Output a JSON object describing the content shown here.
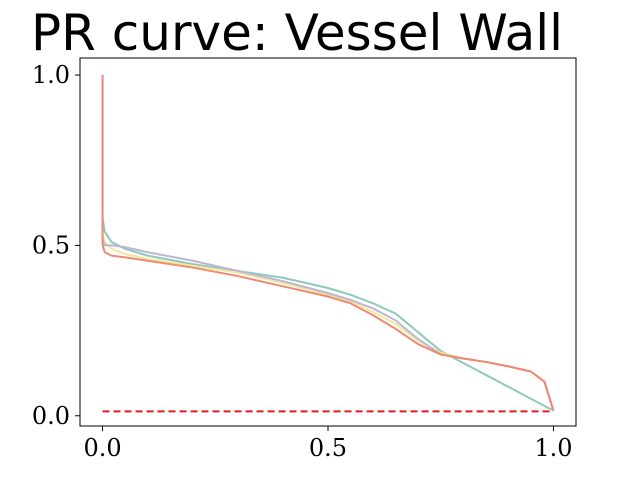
{
  "chart_data": {
    "type": "line",
    "title": "PR curve: Vessel Wall",
    "xlabel": "",
    "ylabel": "",
    "xlim": [
      -0.05,
      1.05
    ],
    "ylim": [
      -0.03,
      1.05
    ],
    "xticks": [
      0.0,
      0.5,
      1.0
    ],
    "xtick_labels": [
      "0.0",
      "0.5",
      "1.0"
    ],
    "yticks": [
      0.0,
      0.5,
      1.0
    ],
    "ytick_labels": [
      "0.0",
      "0.5",
      "1.0"
    ],
    "grid": false,
    "legend": "none",
    "series": [
      {
        "color": "#8ec9bb",
        "style": "solid",
        "x": [
          0.0,
          0.0,
          0.005,
          0.02,
          0.05,
          0.1,
          0.2,
          0.3,
          0.4,
          0.5,
          0.55,
          0.6,
          0.65,
          0.7,
          0.75,
          0.8,
          0.85,
          0.9,
          0.95,
          1.0
        ],
        "y": [
          1.0,
          0.58,
          0.54,
          0.51,
          0.49,
          0.47,
          0.445,
          0.425,
          0.405,
          0.375,
          0.355,
          0.33,
          0.3,
          0.245,
          0.19,
          0.155,
          0.12,
          0.085,
          0.05,
          0.015
        ]
      },
      {
        "color": "#f2e89a",
        "style": "solid",
        "x": [
          0.0,
          0.0,
          0.005,
          0.02,
          0.05,
          0.1,
          0.2,
          0.3,
          0.4,
          0.5,
          0.55,
          0.6,
          0.65,
          0.7,
          0.75,
          0.8,
          0.85,
          0.9,
          0.95,
          0.98,
          1.0
        ],
        "y": [
          1.0,
          0.53,
          0.51,
          0.49,
          0.475,
          0.46,
          0.44,
          0.42,
          0.39,
          0.355,
          0.335,
          0.305,
          0.27,
          0.22,
          0.185,
          0.168,
          0.158,
          0.145,
          0.13,
          0.1,
          0.015
        ]
      },
      {
        "color": "#bdb5d6",
        "style": "solid",
        "x": [
          0.0,
          0.0,
          0.005,
          0.02,
          0.05,
          0.1,
          0.2,
          0.3,
          0.4,
          0.5,
          0.55,
          0.6,
          0.65,
          0.7,
          0.75,
          0.8,
          0.85,
          0.9,
          0.95,
          0.98,
          1.0
        ],
        "y": [
          1.0,
          0.52,
          0.5,
          0.5,
          0.495,
          0.48,
          0.455,
          0.425,
          0.395,
          0.36,
          0.34,
          0.315,
          0.28,
          0.225,
          0.18,
          0.168,
          0.158,
          0.145,
          0.13,
          0.1,
          0.015
        ]
      },
      {
        "color": "#ec8a73",
        "style": "solid",
        "x": [
          0.0,
          0.0,
          0.005,
          0.02,
          0.05,
          0.1,
          0.2,
          0.3,
          0.4,
          0.5,
          0.55,
          0.6,
          0.65,
          0.7,
          0.75,
          0.8,
          0.85,
          0.9,
          0.95,
          0.98,
          1.0
        ],
        "y": [
          1.0,
          0.5,
          0.48,
          0.47,
          0.465,
          0.455,
          0.435,
          0.41,
          0.38,
          0.35,
          0.33,
          0.295,
          0.255,
          0.21,
          0.18,
          0.168,
          0.158,
          0.145,
          0.13,
          0.1,
          0.015
        ]
      },
      {
        "color": "#e31a1c",
        "style": "dashed",
        "x": [
          0.0,
          1.0
        ],
        "y": [
          0.013,
          0.013
        ]
      }
    ]
  }
}
